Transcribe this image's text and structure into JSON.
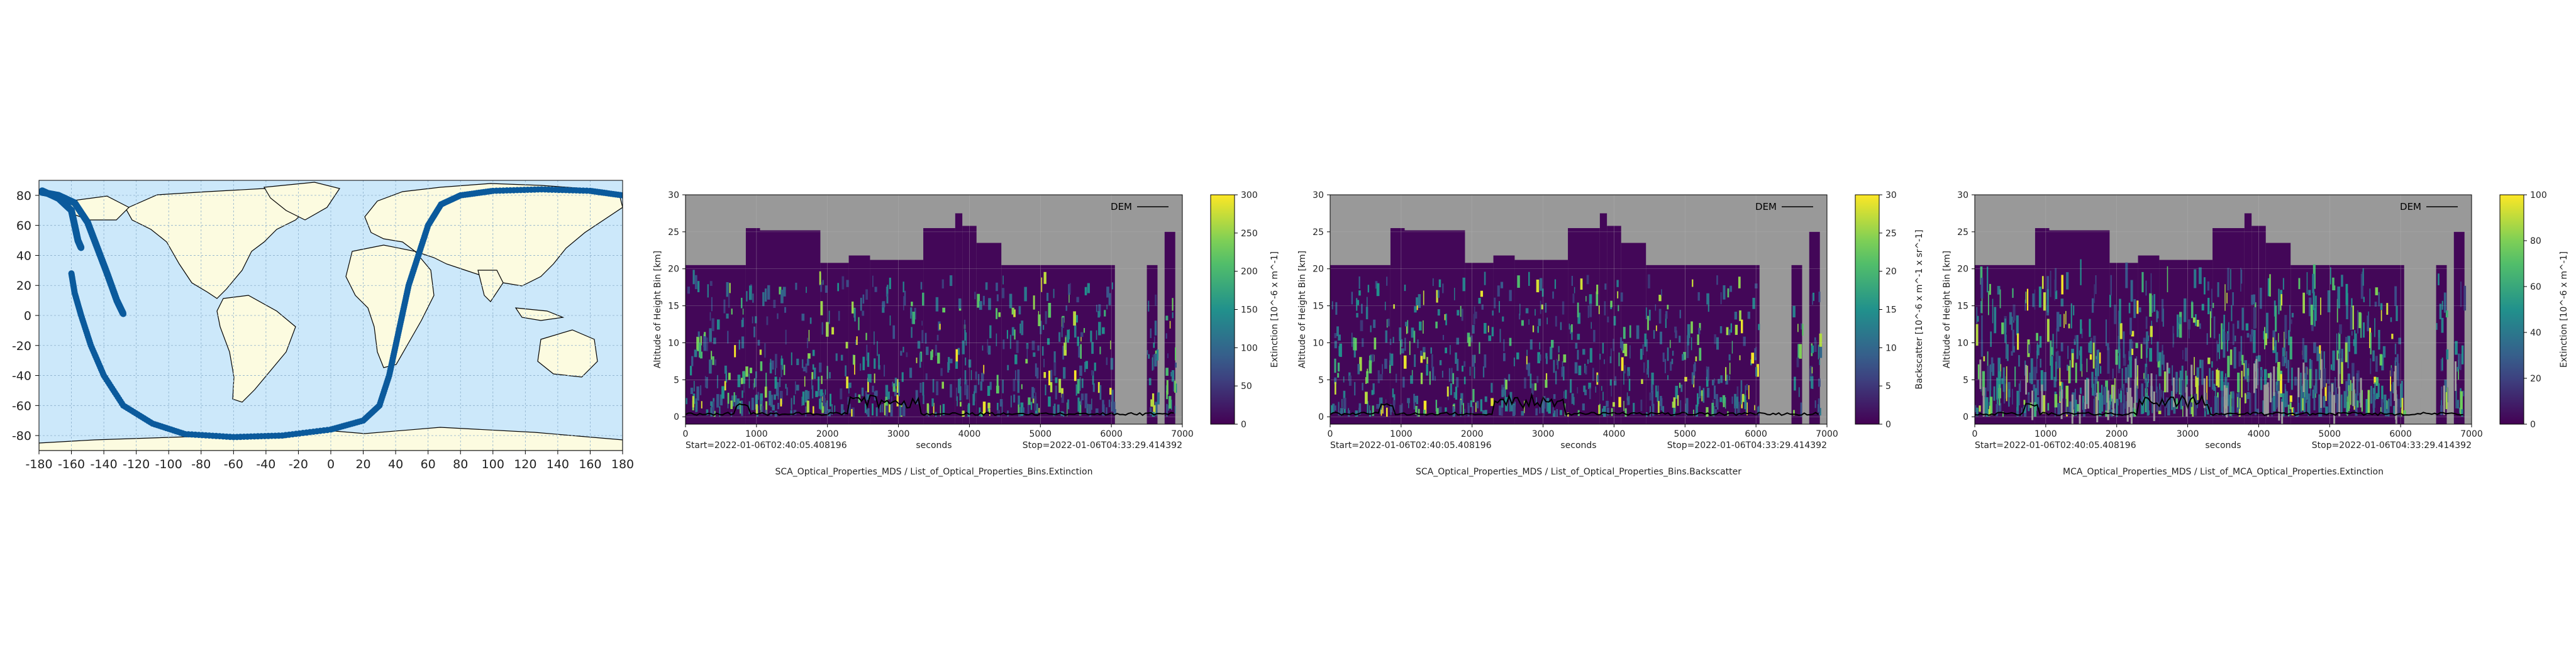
{
  "map": {
    "x_ticks": [
      "-180",
      "-160",
      "-140",
      "-120",
      "-100",
      "-80",
      "-60",
      "-40",
      "-20",
      "0",
      "20",
      "40",
      "60",
      "80",
      "100",
      "120",
      "140",
      "160",
      "180"
    ],
    "y_ticks": [
      "80",
      "60",
      "40",
      "20",
      "0",
      "-20",
      "-40",
      "-60",
      "-80"
    ],
    "colors": {
      "ocean": "#cce8fa",
      "land": "#fcfbe0",
      "grid": "#8aaecb",
      "track": "#0b5a9c"
    }
  },
  "chart_data": [
    {
      "type": "scatter",
      "title": "",
      "xlim": [
        -180,
        180
      ],
      "ylim": [
        -90,
        90
      ],
      "series": [
        {
          "values": [
            [
              -178,
              83
            ],
            [
              -168,
              78
            ],
            [
              -160,
              70
            ],
            [
              -158,
              60
            ],
            [
              -156,
              50
            ],
            [
              -154,
              45
            ]
          ]
        },
        {
          "values": [
            [
              -160,
              28
            ],
            [
              -158,
              15
            ],
            [
              -154,
              0
            ],
            [
              -148,
              -20
            ],
            [
              -140,
              -40
            ],
            [
              -128,
              -60
            ],
            [
              -110,
              -72
            ],
            [
              -90,
              -79
            ],
            [
              -60,
              -81
            ],
            [
              -30,
              -80
            ],
            [
              0,
              -76
            ],
            [
              20,
              -70
            ],
            [
              30,
              -60
            ],
            [
              36,
              -40
            ],
            [
              40,
              -20
            ],
            [
              44,
              0
            ],
            [
              48,
              20
            ],
            [
              54,
              40
            ],
            [
              60,
              60
            ],
            [
              68,
              74
            ],
            [
              80,
              80
            ],
            [
              100,
              83
            ],
            [
              130,
              84
            ],
            [
              160,
              83
            ],
            [
              180,
              80
            ]
          ]
        },
        {
          "values": [
            [
              -178,
              82
            ],
            [
              -168,
              80
            ],
            [
              -158,
              75
            ],
            [
              -150,
              62
            ],
            [
              -144,
              45
            ],
            [
              -138,
              28
            ],
            [
              -132,
              10
            ],
            [
              -128,
              1
            ]
          ]
        }
      ]
    },
    {
      "type": "heatmap",
      "title": "SCA_Optical_Properties_MDS / List_of_Optical_Properties_Bins.Extinction",
      "xlabel": "seconds",
      "ylabel": "Altitude of Height Bin [km]",
      "colorbar_label": "Extinction [10^-6 x m^-1]",
      "xlim": [
        0,
        7000
      ],
      "ylim": [
        -1,
        30
      ],
      "x_ticks": [
        "0",
        "1000",
        "2000",
        "3000",
        "4000",
        "5000",
        "6000",
        "7000"
      ],
      "y_ticks": [
        "0",
        "5",
        "10",
        "15",
        "20",
        "25",
        "30"
      ],
      "colorbar_ticks": [
        "0",
        "50",
        "100",
        "150",
        "200",
        "250",
        "300"
      ],
      "start_label": "Start=2022-01-06T02:40:05.408196",
      "stop_label": "Stop=2022-01-06T04:33:29.414392",
      "legend": "DEM",
      "seed": 11
    },
    {
      "type": "heatmap",
      "title": "SCA_Optical_Properties_MDS / List_of_Optical_Properties_Bins.Backscatter",
      "xlabel": "seconds",
      "ylabel": "Altitude of Height Bin [km]",
      "colorbar_label": "Backscatter [10^-6 x m^-1 x sr^-1]",
      "xlim": [
        0,
        7000
      ],
      "ylim": [
        -1,
        30
      ],
      "x_ticks": [
        "0",
        "1000",
        "2000",
        "3000",
        "4000",
        "5000",
        "6000",
        "7000"
      ],
      "y_ticks": [
        "0",
        "5",
        "10",
        "15",
        "20",
        "25",
        "30"
      ],
      "colorbar_ticks": [
        "0",
        "5",
        "10",
        "15",
        "20",
        "25",
        "30"
      ],
      "start_label": "Start=2022-01-06T02:40:05.408196",
      "stop_label": "Stop=2022-01-06T04:33:29.414392",
      "legend": "DEM",
      "seed": 23
    },
    {
      "type": "heatmap",
      "title": "MCA_Optical_Properties_MDS / List_of_MCA_Optical_Properties.Extinction",
      "xlabel": "seconds",
      "ylabel": "Altitude of Height Bin [km]",
      "colorbar_label": "Extinction [10^-6 x m^-1]",
      "xlim": [
        0,
        7000
      ],
      "ylim": [
        -1,
        30
      ],
      "x_ticks": [
        "0",
        "1000",
        "2000",
        "3000",
        "4000",
        "5000",
        "6000",
        "7000"
      ],
      "y_ticks": [
        "0",
        "5",
        "10",
        "15",
        "20",
        "25",
        "30"
      ],
      "colorbar_ticks": [
        "0",
        "20",
        "40",
        "60",
        "80",
        "100"
      ],
      "start_label": "Start=2022-01-06T02:40:05.408196",
      "stop_label": "Stop=2022-01-06T04:33:29.414392",
      "legend": "DEM",
      "seed": 37
    }
  ],
  "profile": {
    "segments": [
      {
        "x0": 0,
        "x1": 850,
        "top": 20.5
      },
      {
        "x0": 850,
        "x1": 1050,
        "top": 25.5
      },
      {
        "x0": 1050,
        "x1": 1900,
        "top": 25.2
      },
      {
        "x0": 1900,
        "x1": 2300,
        "top": 20.8
      },
      {
        "x0": 2300,
        "x1": 2600,
        "top": 21.8
      },
      {
        "x0": 2600,
        "x1": 3350,
        "top": 21.2
      },
      {
        "x0": 3350,
        "x1": 3800,
        "top": 25.5
      },
      {
        "x0": 3800,
        "x1": 3900,
        "top": 27.5
      },
      {
        "x0": 3900,
        "x1": 4100,
        "top": 25.8
      },
      {
        "x0": 4100,
        "x1": 4450,
        "top": 23.5
      },
      {
        "x0": 4450,
        "x1": 5000,
        "top": 20.5
      },
      {
        "x0": 5000,
        "x1": 6050,
        "top": 20.5
      },
      {
        "x0": 6050,
        "x1": 6500,
        "top": -1
      },
      {
        "x0": 6500,
        "x1": 6650,
        "top": 20.5
      },
      {
        "x0": 6650,
        "x1": 6750,
        "top": -1
      },
      {
        "x0": 6750,
        "x1": 6900,
        "top": 25.0
      }
    ],
    "colors": {
      "missing": "#999999",
      "dem": "#000000"
    }
  }
}
